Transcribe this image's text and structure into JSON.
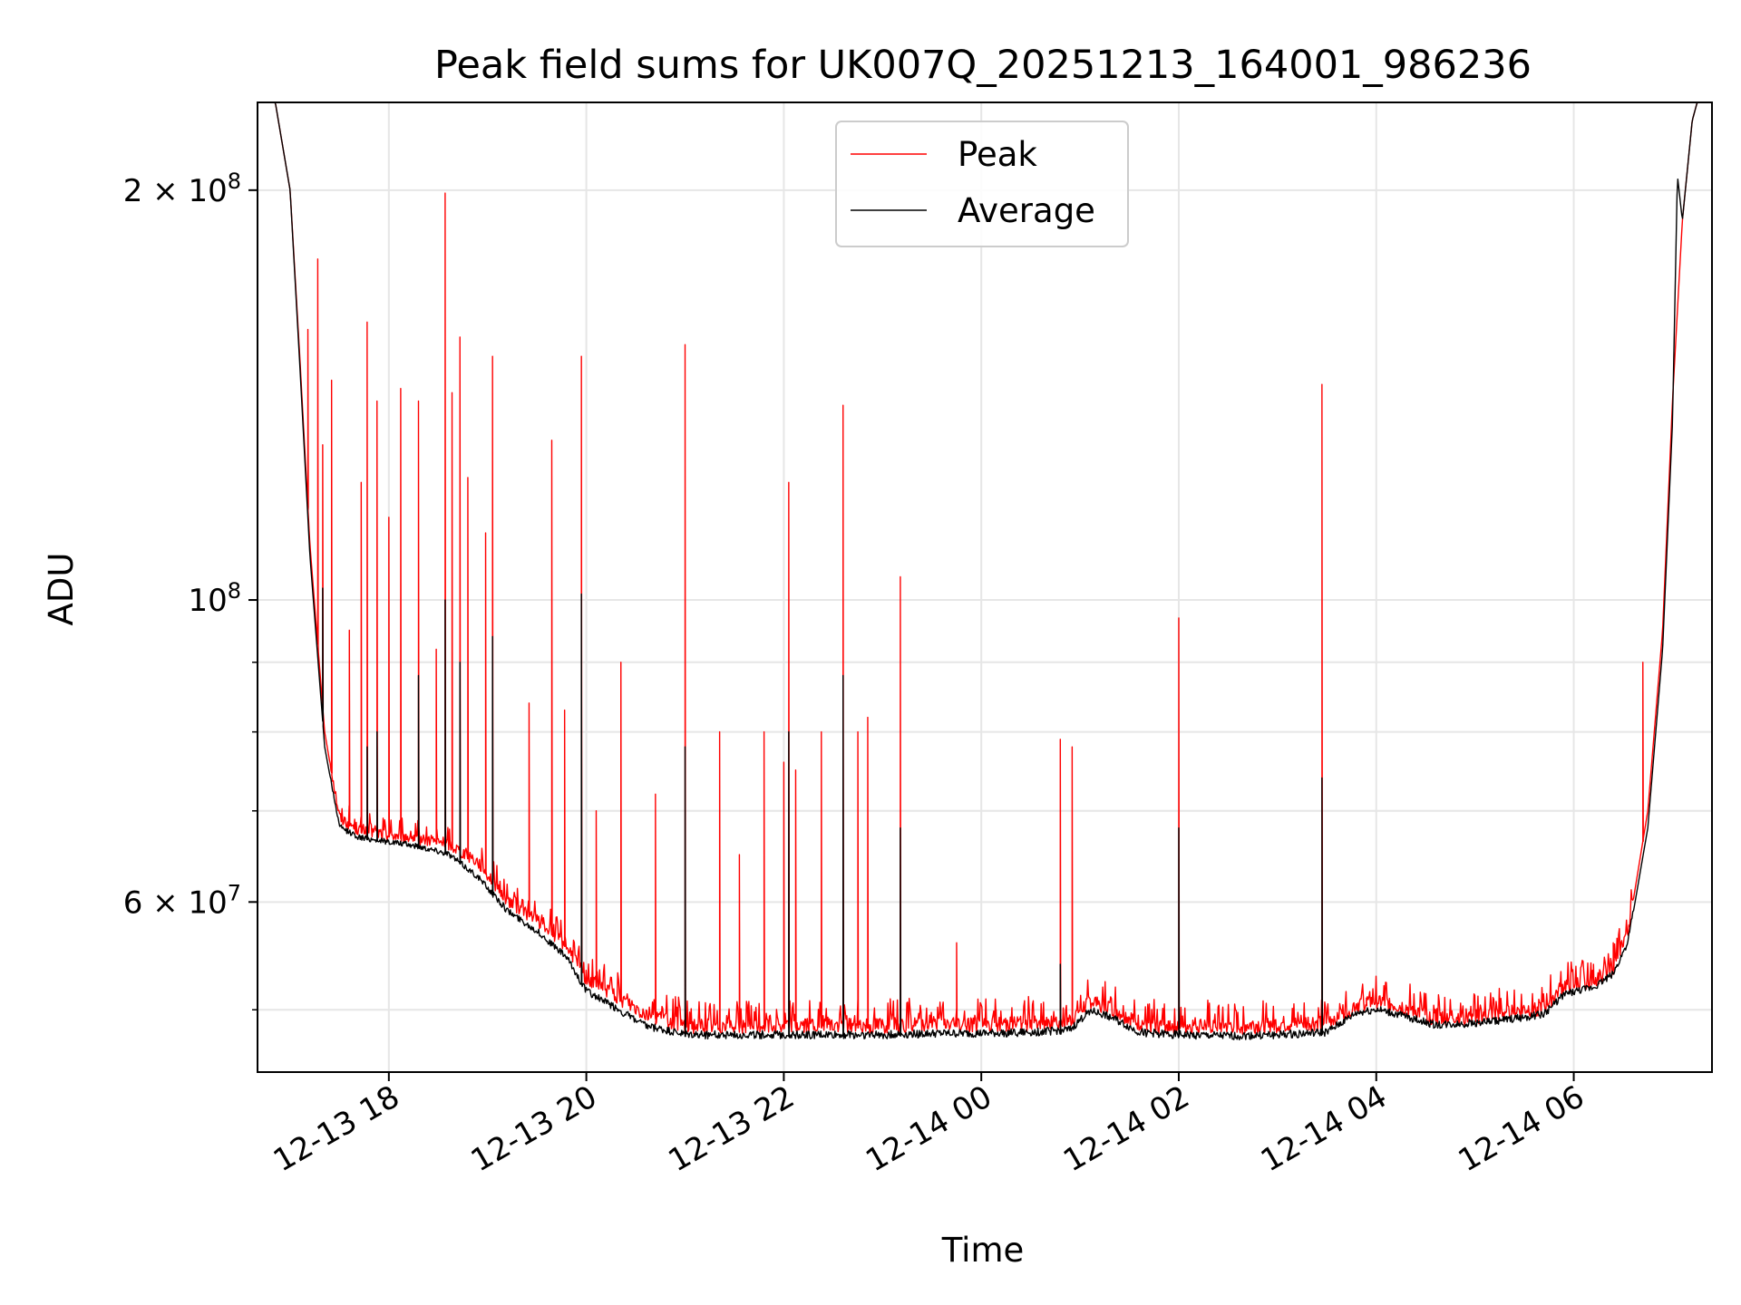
{
  "chart_data": {
    "type": "line",
    "title": "Peak field sums for UK007Q_20251213_164001_986236",
    "xlabel": "Time",
    "ylabel": "ADU",
    "yscale": "log",
    "ylim": [
      45000000,
      232000000
    ],
    "xlim_hours": [
      16.67,
      31.4
    ],
    "grid": true,
    "legend_position": "top-center",
    "x_ticks": [
      {
        "hour": 18,
        "label": "12-13 18"
      },
      {
        "hour": 20,
        "label": "12-13 20"
      },
      {
        "hour": 22,
        "label": "12-13 22"
      },
      {
        "hour": 24,
        "label": "12-14 00"
      },
      {
        "hour": 26,
        "label": "12-14 02"
      },
      {
        "hour": 28,
        "label": "12-14 04"
      },
      {
        "hour": 30,
        "label": "12-14 06"
      }
    ],
    "y_major_ticks": [
      {
        "value": 60000000,
        "mantissa": "6",
        "exp": "7"
      },
      {
        "value": 100000000,
        "mantissa": "",
        "exp": "8"
      },
      {
        "value": 200000000,
        "mantissa": "2",
        "exp": "8"
      }
    ],
    "y_minor_ticks": [
      50000000,
      70000000,
      80000000,
      90000000
    ],
    "series": [
      {
        "name": "Peak",
        "legend_label": "Peak",
        "color": "#ff0000",
        "baseline": [
          [
            16.67,
            232000000
          ],
          [
            16.85,
            232000000
          ],
          [
            17.0,
            200000000
          ],
          [
            17.1,
            150000000
          ],
          [
            17.2,
            110000000
          ],
          [
            17.35,
            80000000
          ],
          [
            17.5,
            69000000
          ],
          [
            17.7,
            67500000
          ],
          [
            18.0,
            67000000
          ],
          [
            18.3,
            66500000
          ],
          [
            18.6,
            66000000
          ],
          [
            18.9,
            64000000
          ],
          [
            19.2,
            60000000
          ],
          [
            19.5,
            58000000
          ],
          [
            19.8,
            55500000
          ],
          [
            20.0,
            52500000
          ],
          [
            20.3,
            51000000
          ],
          [
            20.6,
            49500000
          ],
          [
            21.0,
            48500000
          ],
          [
            21.5,
            48500000
          ],
          [
            22.0,
            48500000
          ],
          [
            22.5,
            48500000
          ],
          [
            23.0,
            48500000
          ],
          [
            23.5,
            48600000
          ],
          [
            24.0,
            48600000
          ],
          [
            24.5,
            48700000
          ],
          [
            24.9,
            48800000
          ],
          [
            25.1,
            50500000
          ],
          [
            25.3,
            50000000
          ],
          [
            25.6,
            48600000
          ],
          [
            26.0,
            48400000
          ],
          [
            26.5,
            48400000
          ],
          [
            27.0,
            48500000
          ],
          [
            27.5,
            48700000
          ],
          [
            27.8,
            50200000
          ],
          [
            28.0,
            50500000
          ],
          [
            28.3,
            49900000
          ],
          [
            28.6,
            49100000
          ],
          [
            28.9,
            49200000
          ],
          [
            29.3,
            49500000
          ],
          [
            29.7,
            50000000
          ],
          [
            29.9,
            51800000
          ],
          [
            30.2,
            52300000
          ],
          [
            30.4,
            53500000
          ],
          [
            30.55,
            57000000
          ],
          [
            30.75,
            70000000
          ],
          [
            30.9,
            95000000
          ],
          [
            31.0,
            140000000
          ],
          [
            31.1,
            190000000
          ],
          [
            31.2,
            225000000
          ],
          [
            31.25,
            232000000
          ],
          [
            31.4,
            232000000
          ]
        ],
        "spikes": [
          [
            17.18,
            158000000
          ],
          [
            17.28,
            178000000
          ],
          [
            17.33,
            130000000
          ],
          [
            17.42,
            145000000
          ],
          [
            17.6,
            95000000
          ],
          [
            17.72,
            122000000
          ],
          [
            17.78,
            160000000
          ],
          [
            17.88,
            140000000
          ],
          [
            18.0,
            115000000
          ],
          [
            18.12,
            143000000
          ],
          [
            18.3,
            140000000
          ],
          [
            18.48,
            92000000
          ],
          [
            18.57,
            199000000
          ],
          [
            18.64,
            142000000
          ],
          [
            18.72,
            156000000
          ],
          [
            18.8,
            123000000
          ],
          [
            18.98,
            112000000
          ],
          [
            19.05,
            151000000
          ],
          [
            19.42,
            84000000
          ],
          [
            19.65,
            131000000
          ],
          [
            19.78,
            83000000
          ],
          [
            19.95,
            151000000
          ],
          [
            20.1,
            70000000
          ],
          [
            20.35,
            90000000
          ],
          [
            20.7,
            72000000
          ],
          [
            21.0,
            154000000
          ],
          [
            21.35,
            80000000
          ],
          [
            21.55,
            65000000
          ],
          [
            21.8,
            80000000
          ],
          [
            22.0,
            76000000
          ],
          [
            22.05,
            122000000
          ],
          [
            22.12,
            75000000
          ],
          [
            22.38,
            80000000
          ],
          [
            22.6,
            139000000
          ],
          [
            22.75,
            80000000
          ],
          [
            22.85,
            82000000
          ],
          [
            23.18,
            104000000
          ],
          [
            23.75,
            56000000
          ],
          [
            24.15,
            50000000
          ],
          [
            24.8,
            79000000
          ],
          [
            24.92,
            78000000
          ],
          [
            26.0,
            97000000
          ],
          [
            27.45,
            144000000
          ],
          [
            27.9,
            51000000
          ],
          [
            28.6,
            50000000
          ],
          [
            30.2,
            54000000
          ],
          [
            30.4,
            56000000
          ],
          [
            30.7,
            90000000
          ]
        ],
        "ripple": 700000
      },
      {
        "name": "Average",
        "legend_label": "Average",
        "color": "#000000",
        "baseline": [
          [
            16.67,
            232000000
          ],
          [
            16.85,
            232000000
          ],
          [
            17.0,
            200000000
          ],
          [
            17.1,
            148000000
          ],
          [
            17.2,
            108000000
          ],
          [
            17.35,
            78000000
          ],
          [
            17.5,
            68000000
          ],
          [
            17.7,
            66800000
          ],
          [
            18.0,
            66300000
          ],
          [
            18.3,
            65800000
          ],
          [
            18.6,
            65000000
          ],
          [
            18.9,
            62500000
          ],
          [
            19.2,
            59000000
          ],
          [
            19.5,
            57000000
          ],
          [
            19.8,
            54500000
          ],
          [
            20.0,
            51500000
          ],
          [
            20.3,
            50000000
          ],
          [
            20.6,
            48500000
          ],
          [
            21.0,
            47800000
          ],
          [
            21.5,
            47800000
          ],
          [
            22.0,
            47800000
          ],
          [
            22.5,
            47800000
          ],
          [
            23.0,
            47800000
          ],
          [
            23.5,
            47900000
          ],
          [
            24.0,
            47900000
          ],
          [
            24.5,
            48000000
          ],
          [
            24.9,
            48200000
          ],
          [
            25.1,
            49800000
          ],
          [
            25.3,
            49300000
          ],
          [
            25.6,
            48000000
          ],
          [
            26.0,
            47800000
          ],
          [
            26.5,
            47700000
          ],
          [
            27.0,
            47800000
          ],
          [
            27.5,
            48000000
          ],
          [
            27.8,
            49600000
          ],
          [
            28.0,
            49900000
          ],
          [
            28.3,
            49300000
          ],
          [
            28.6,
            48600000
          ],
          [
            28.9,
            48700000
          ],
          [
            29.3,
            49000000
          ],
          [
            29.7,
            49500000
          ],
          [
            29.9,
            51200000
          ],
          [
            30.2,
            51800000
          ],
          [
            30.4,
            53000000
          ],
          [
            30.55,
            56000000
          ],
          [
            30.75,
            68000000
          ],
          [
            30.9,
            92000000
          ],
          [
            31.0,
            135000000
          ],
          [
            31.05,
            205000000
          ],
          [
            31.1,
            190000000
          ],
          [
            31.2,
            225000000
          ],
          [
            31.25,
            232000000
          ],
          [
            31.4,
            232000000
          ]
        ],
        "spikes": [
          [
            17.33,
            102000000
          ],
          [
            17.78,
            78000000
          ],
          [
            17.88,
            80000000
          ],
          [
            18.3,
            88000000
          ],
          [
            18.57,
            100000000
          ],
          [
            18.72,
            90000000
          ],
          [
            19.05,
            94000000
          ],
          [
            19.95,
            101000000
          ],
          [
            21.0,
            78000000
          ],
          [
            22.05,
            80000000
          ],
          [
            22.6,
            88000000
          ],
          [
            23.18,
            68000000
          ],
          [
            24.8,
            54000000
          ],
          [
            26.0,
            68000000
          ],
          [
            27.45,
            74000000
          ]
        ],
        "ripple": 300000
      }
    ]
  }
}
